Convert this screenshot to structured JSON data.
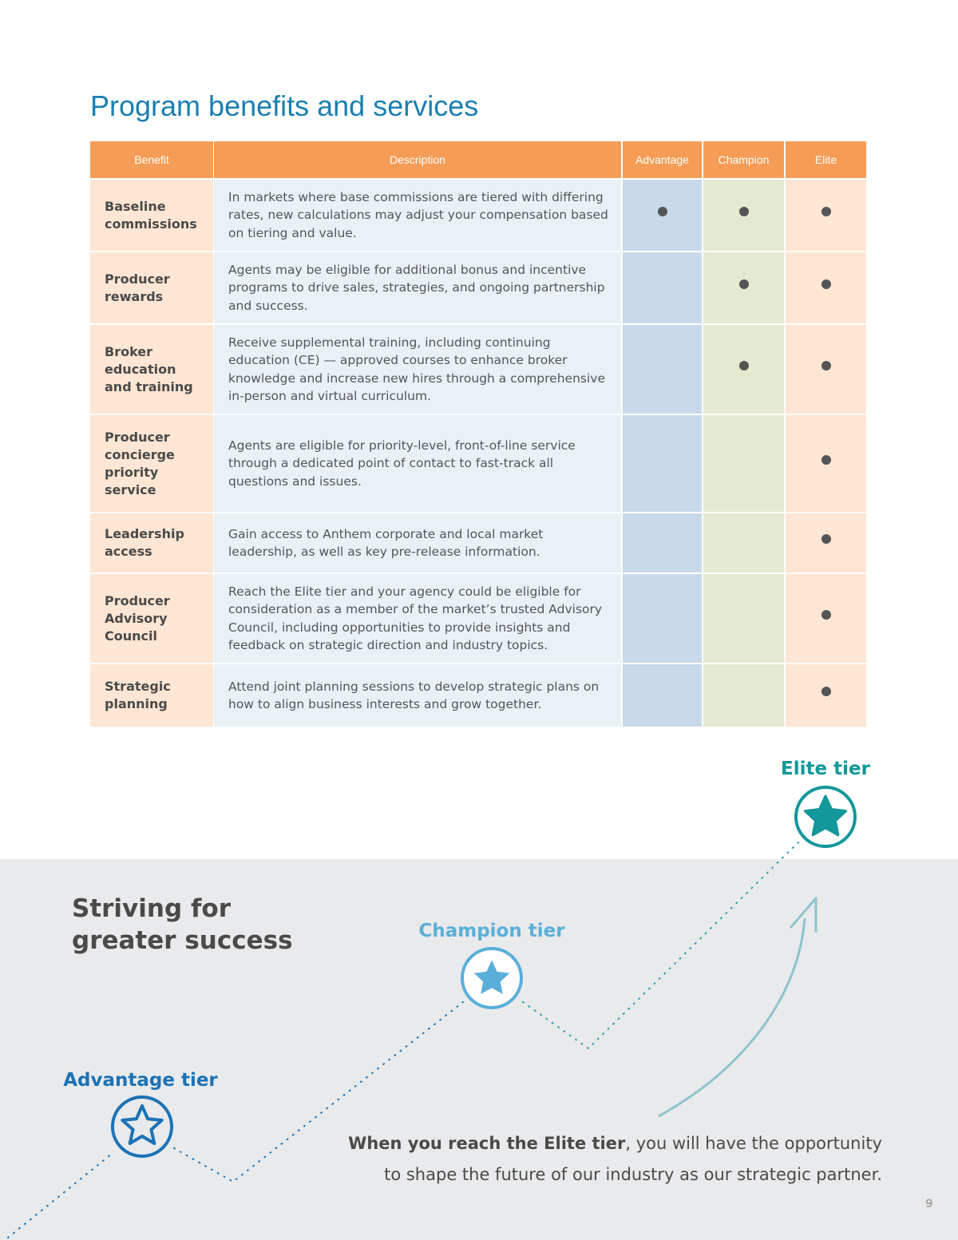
{
  "title": "Program benefits and services",
  "table": {
    "headers": [
      "Benefit",
      "Description",
      "Advantage",
      "Champion",
      "Elite"
    ],
    "rows": [
      {
        "benefit": "Baseline commissions",
        "description": "In markets where base commissions are tiered with differing rates, new calculations may adjust your compensation based on tiering and value.",
        "tiers": [
          true,
          true,
          true
        ]
      },
      {
        "benefit": "Producer rewards",
        "description": "Agents may be eligible for additional bonus and incentive programs to drive sales, strategies, and ongoing partnership and success.",
        "tiers": [
          false,
          true,
          true
        ]
      },
      {
        "benefit": "Broker education and training",
        "description": "Receive supplemental training, including continuing education (CE) — approved courses to enhance broker knowledge and increase new hires through a comprehensive in-person and virtual curriculum.",
        "tiers": [
          false,
          true,
          true
        ]
      },
      {
        "benefit": "Producer concierge priority service",
        "description": "Agents are eligible for priority-level, front-of-line service through a dedicated point of contact to fast-track all questions and issues.",
        "tiers": [
          false,
          false,
          true
        ]
      },
      {
        "benefit": "Leadership access",
        "description": "Gain access to Anthem corporate and local market leadership, as well as key pre-release information.",
        "tiers": [
          false,
          false,
          true
        ]
      },
      {
        "benefit": "Producer Advisory Council",
        "description": "Reach the Elite tier and your agency could be eligible for consideration as a member of the market’s trusted Advisory Council, including opportunities to provide insights and feedback on strategic direction and industry topics.",
        "tiers": [
          false,
          false,
          true
        ]
      },
      {
        "benefit": "Strategic planning",
        "description": "Attend joint planning sessions to develop strategic plans on how to align business interests and grow together.",
        "tiers": [
          false,
          false,
          true
        ]
      }
    ]
  },
  "section": {
    "heading": [
      "Striving for",
      "greater success"
    ],
    "tiers": [
      "Advantage tier",
      "Champion tier",
      "Elite tier"
    ],
    "closing_bold": "When you reach the Elite tier",
    "closing_lines": [
      ", you will have the opportunity",
      "to shape the future of our industry as our strategic partner."
    ]
  },
  "page_number": "9"
}
